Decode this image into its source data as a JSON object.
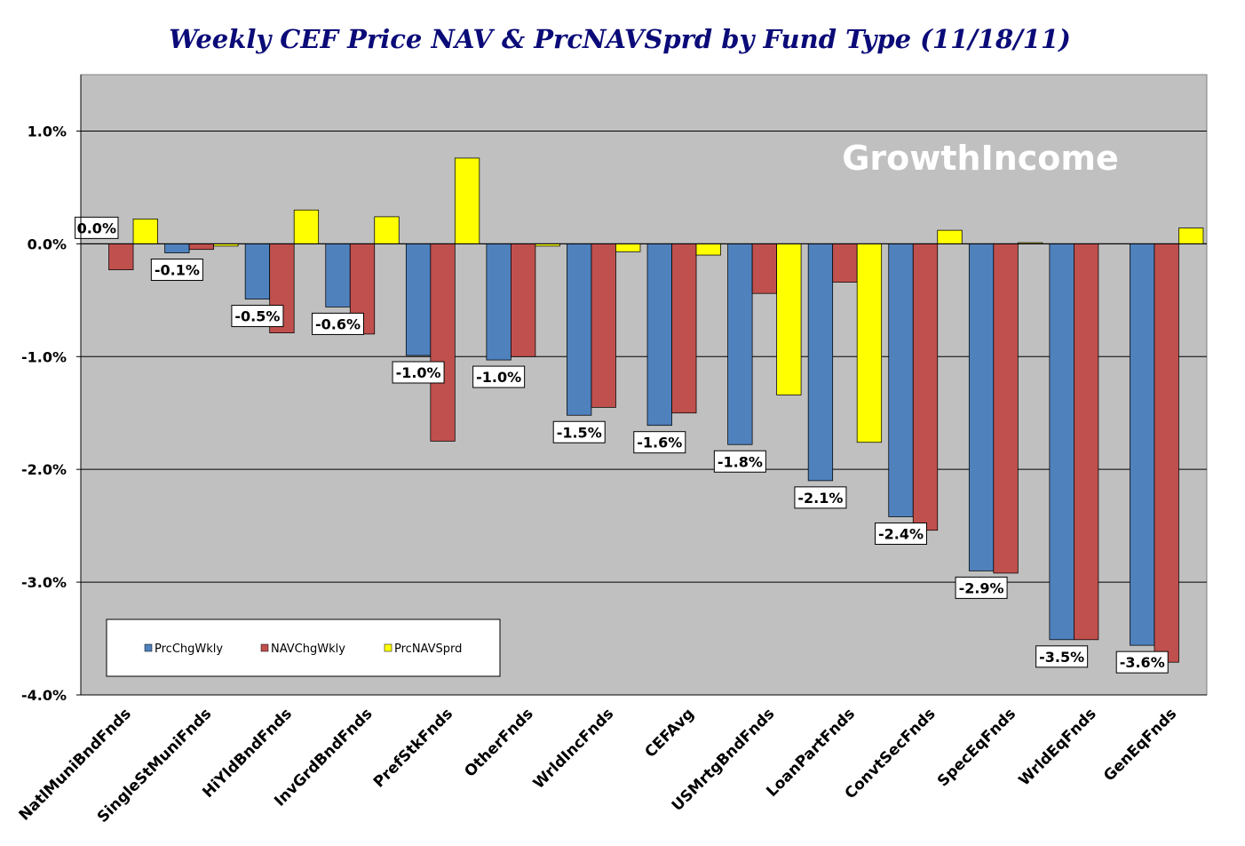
{
  "chart_data": {
    "type": "bar",
    "title": "Weekly CEF Price NAV & PrcNAVSprd by Fund Type  (11/18/11)",
    "watermark": "GrowthIncome",
    "categories": [
      "NatlMuniBndFnds",
      "SingleStMuniFnds",
      "HiYldBndFnds",
      "InvGrdBndFnds",
      "PrefStkFnds",
      "OtherFnds",
      "WrldIncFnds",
      "CEFAvg",
      "USMrtgBndFnds",
      "LoanPartFnds",
      "ConvtSecFnds",
      "SpecEqFnds",
      "WrldEqFnds",
      "GenEqFnds"
    ],
    "series": [
      {
        "name": "PrcChgWkly",
        "color": "#4f81bd",
        "values": [
          0.0,
          -0.08,
          -0.49,
          -0.56,
          -0.99,
          -1.03,
          -1.52,
          -1.61,
          -1.78,
          -2.1,
          -2.42,
          -2.9,
          -3.51,
          -3.56
        ]
      },
      {
        "name": "NAVChgWkly",
        "color": "#c0504d",
        "values": [
          -0.23,
          -0.05,
          -0.79,
          -0.8,
          -1.75,
          -1.0,
          -1.45,
          -1.5,
          -0.44,
          -0.34,
          -2.54,
          -2.92,
          -3.51,
          -3.71
        ]
      },
      {
        "name": "PrcNAVSprd",
        "color": "#ffff00",
        "values": [
          0.22,
          -0.02,
          0.3,
          0.24,
          0.76,
          -0.02,
          -0.07,
          -0.1,
          -1.34,
          -1.76,
          0.12,
          0.01,
          0.0,
          0.14
        ]
      }
    ],
    "data_labels": [
      "0.0%",
      "-0.1%",
      "-0.5%",
      "-0.6%",
      "-1.0%",
      "-1.0%",
      "-1.5%",
      "-1.6%",
      "-1.8%",
      "-2.1%",
      "-2.4%",
      "-2.9%",
      "-3.5%",
      "-3.6%"
    ],
    "y_ticks": [
      1.0,
      0.0,
      -1.0,
      -2.0,
      -3.0,
      -4.0
    ],
    "y_tick_labels": [
      "1.0%",
      "0.0%",
      "-1.0%",
      "-2.0%",
      "-3.0%",
      "-4.0%"
    ],
    "ylim": [
      -4.0,
      1.5
    ],
    "grid": true,
    "legend_position": "bottom-left"
  }
}
